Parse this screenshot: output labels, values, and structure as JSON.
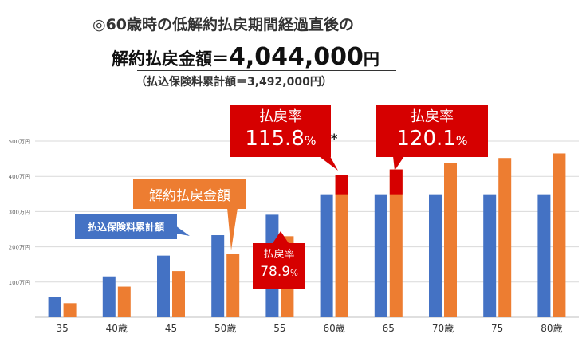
{
  "header": {
    "line1": "◎60歳時の低解約払戻期間経過直後の",
    "line2_prefix": "解約払戻金額＝",
    "line2_amount": "4,044,000",
    "line2_unit": "円",
    "line3": "（払込保険料累計額＝3,492,000円）"
  },
  "labels": {
    "premium_series": "払込保険料累計額",
    "refund_series": "解約払戻金額"
  },
  "callouts": {
    "rate_title": "払戻率",
    "rate_60": "115.8",
    "rate_65": "120.1",
    "rate_55": "78.9",
    "percent": "%",
    "asterisk": "*"
  },
  "colors": {
    "premium": "#4472c4",
    "refund": "#ed7d31",
    "highlight": "#d60000",
    "grid": "#d9d9d9"
  },
  "chart_data": {
    "type": "bar",
    "categories": [
      "35",
      "40歳",
      "45",
      "50歳",
      "55",
      "60歳",
      "65",
      "70歳",
      "75",
      "80歳"
    ],
    "y_ticks": [
      "100万円",
      "200万円",
      "300万円",
      "400万円",
      "500万円"
    ],
    "ylim": [
      0,
      5200000
    ],
    "series": [
      {
        "name": "払込保険料累計額",
        "values": [
          580000,
          1160000,
          1750000,
          2330000,
          2910000,
          3492000,
          3492000,
          3492000,
          3492000,
          3492000
        ]
      },
      {
        "name": "解約払戻金額",
        "values": [
          400000,
          870000,
          1310000,
          1810000,
          2300000,
          4044000,
          4195000,
          4380000,
          4520000,
          4650000
        ]
      }
    ],
    "highlight_threshold": 3492000,
    "grid": true
  }
}
